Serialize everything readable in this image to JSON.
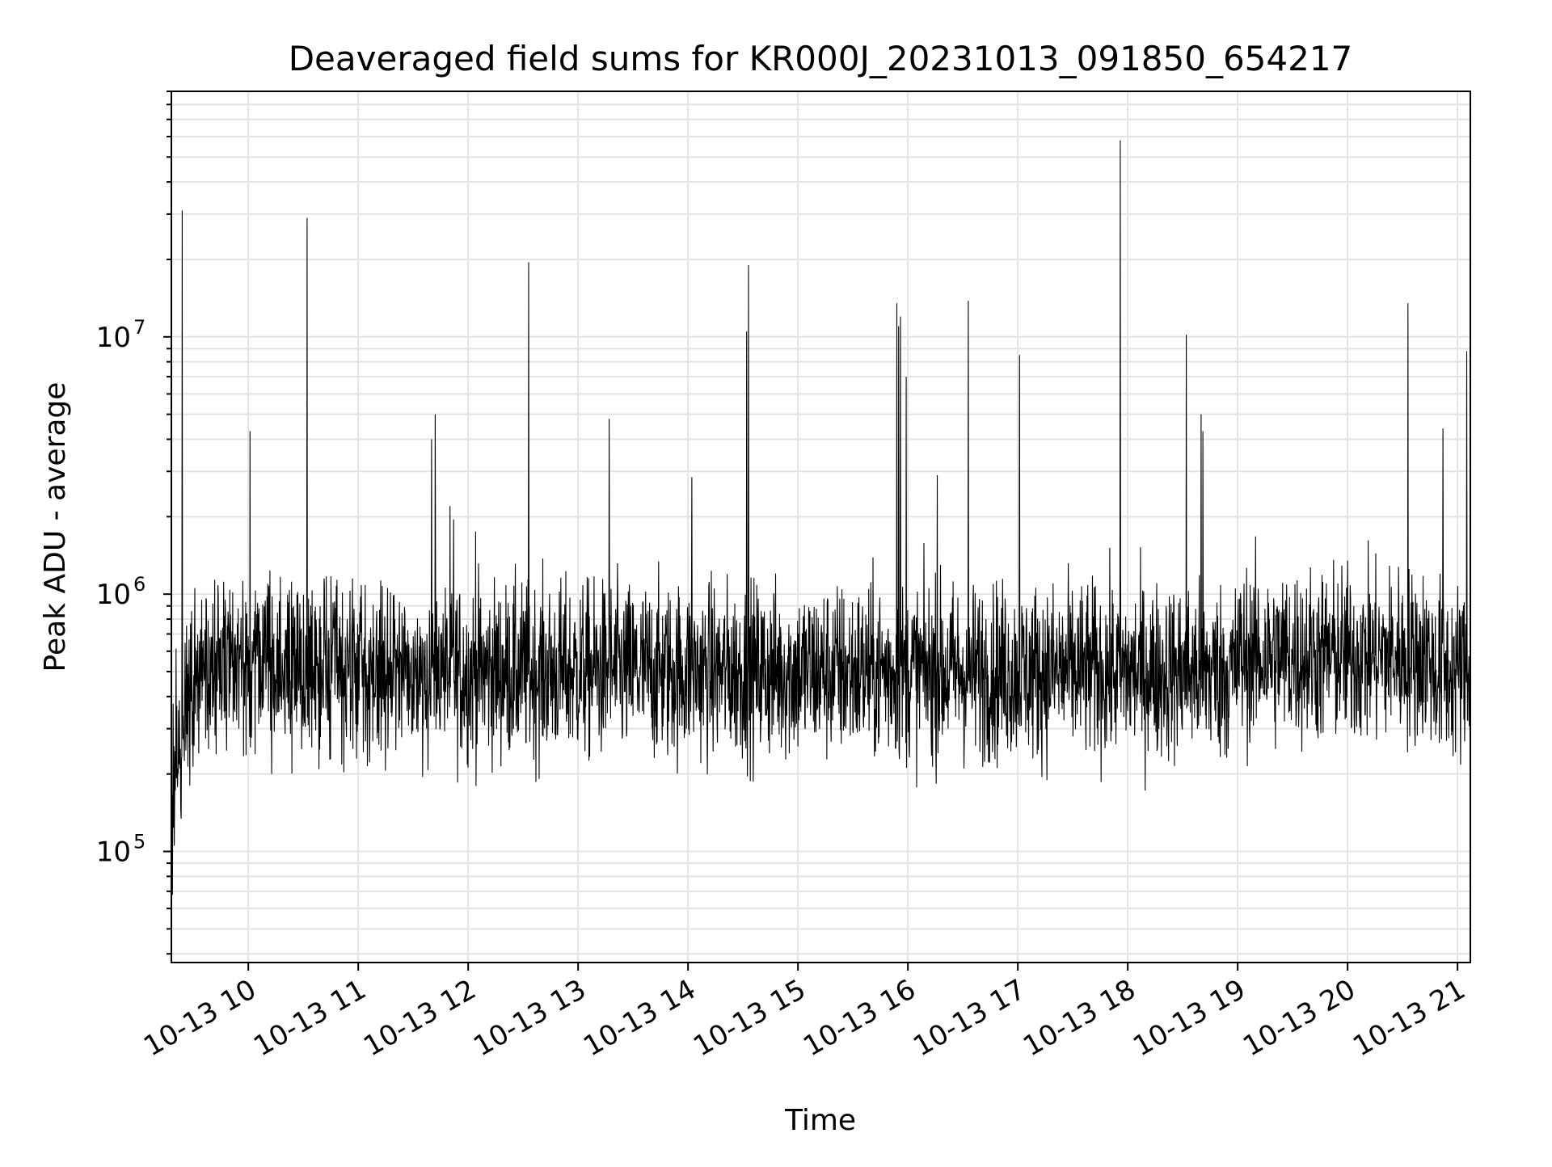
{
  "chart_data": {
    "type": "line",
    "title": "Deaveraged field sums for KR000J_20231013_091850_654217",
    "xlabel": "Time",
    "ylabel": "Peak ADU - average",
    "y_scale": "log",
    "ylim": [
      37000,
      90000000
    ],
    "xlim": [
      "2023-10-13 09:18",
      "2023-10-13 21:07"
    ],
    "x_ticks": [
      "10-13 10",
      "10-13 11",
      "10-13 12",
      "10-13 13",
      "10-13 14",
      "10-13 15",
      "10-13 16",
      "10-13 17",
      "10-13 18",
      "10-13 19",
      "10-13 20",
      "10-13 21"
    ],
    "y_ticks": [
      {
        "value": 100000,
        "base": "10",
        "exp": "5"
      },
      {
        "value": 1000000,
        "base": "10",
        "exp": "6"
      },
      {
        "value": 10000000,
        "base": "10",
        "exp": "7"
      }
    ],
    "grid": true,
    "line_color": "#000000",
    "spikes": [
      {
        "x": "2023-10-13 09:24",
        "y": 31000000
      },
      {
        "x": "2023-10-13 10:01",
        "y": 4300000
      },
      {
        "x": "2023-10-13 10:32",
        "y": 29000000
      },
      {
        "x": "2023-10-13 11:40",
        "y": 4000000
      },
      {
        "x": "2023-10-13 11:42",
        "y": 5000000
      },
      {
        "x": "2023-10-13 11:50",
        "y": 2200000
      },
      {
        "x": "2023-10-13 11:52",
        "y": 1950000
      },
      {
        "x": "2023-10-13 12:04",
        "y": 1750000
      },
      {
        "x": "2023-10-13 12:33",
        "y": 19500000
      },
      {
        "x": "2023-10-13 13:17",
        "y": 4800000
      },
      {
        "x": "2023-10-13 14:02",
        "y": 2850000
      },
      {
        "x": "2023-10-13 14:32",
        "y": 10500000
      },
      {
        "x": "2023-10-13 14:33",
        "y": 19000000
      },
      {
        "x": "2023-10-13 15:54",
        "y": 13500000
      },
      {
        "x": "2023-10-13 15:55",
        "y": 11000000
      },
      {
        "x": "2023-10-13 15:56",
        "y": 12000000
      },
      {
        "x": "2023-10-13 15:59",
        "y": 7000000
      },
      {
        "x": "2023-10-13 16:16",
        "y": 2900000
      },
      {
        "x": "2023-10-13 16:33",
        "y": 13800000
      },
      {
        "x": "2023-10-13 17:01",
        "y": 8500000
      },
      {
        "x": "2023-10-13 17:56",
        "y": 58000000
      },
      {
        "x": "2023-10-13 18:32",
        "y": 10200000
      },
      {
        "x": "2023-10-13 18:40",
        "y": 5000000
      },
      {
        "x": "2023-10-13 18:41",
        "y": 4300000
      },
      {
        "x": "2023-10-13 20:33",
        "y": 13500000
      },
      {
        "x": "2023-10-13 20:52",
        "y": 4400000
      },
      {
        "x": "2023-10-13 21:05",
        "y": 8800000
      }
    ],
    "baseline": {
      "median": 500000,
      "start_low": 150000
    }
  }
}
